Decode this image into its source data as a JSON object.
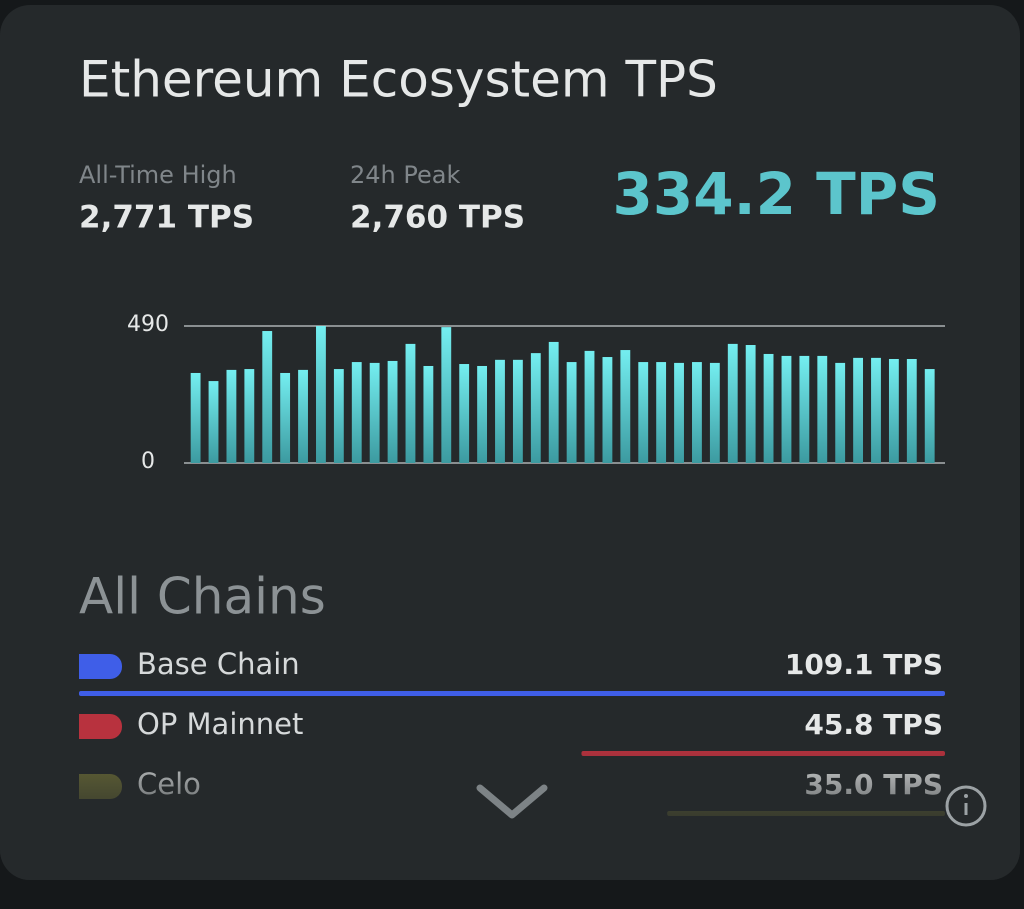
{
  "header": {
    "title": "Ethereum Ecosystem TPS"
  },
  "stats": [
    {
      "label": "All-Time High",
      "value": "2,771 TPS"
    },
    {
      "label": "24h Peak",
      "value": "2,760 TPS"
    }
  ],
  "current": "334.2 TPS",
  "chart": {
    "type": "bar",
    "color": "#6fe3e6",
    "values": [
      322,
      293,
      333,
      336,
      472,
      322,
      333,
      490,
      336,
      361,
      358,
      365,
      426,
      347,
      486,
      354,
      347,
      369,
      369,
      393,
      433,
      361,
      401,
      379,
      404,
      361,
      361,
      358,
      361,
      358,
      426,
      422,
      390,
      383,
      383,
      383,
      358,
      376,
      376,
      372,
      372,
      336
    ],
    "ylim": [
      0,
      490
    ],
    "yticks": [
      0,
      490
    ],
    "grid": true
  },
  "section_title": "All Chains",
  "chains": [
    {
      "name": "Base Chain",
      "value": 109.1,
      "value_label": "109.1 TPS",
      "color": "#3f5ee8"
    },
    {
      "name": "OP Mainnet",
      "value": 45.8,
      "value_label": "45.8 TPS",
      "color": "#b8323e"
    },
    {
      "name": "Celo",
      "value": 35.0,
      "value_label": "35.0 TPS",
      "color": "#6a6a36"
    }
  ]
}
